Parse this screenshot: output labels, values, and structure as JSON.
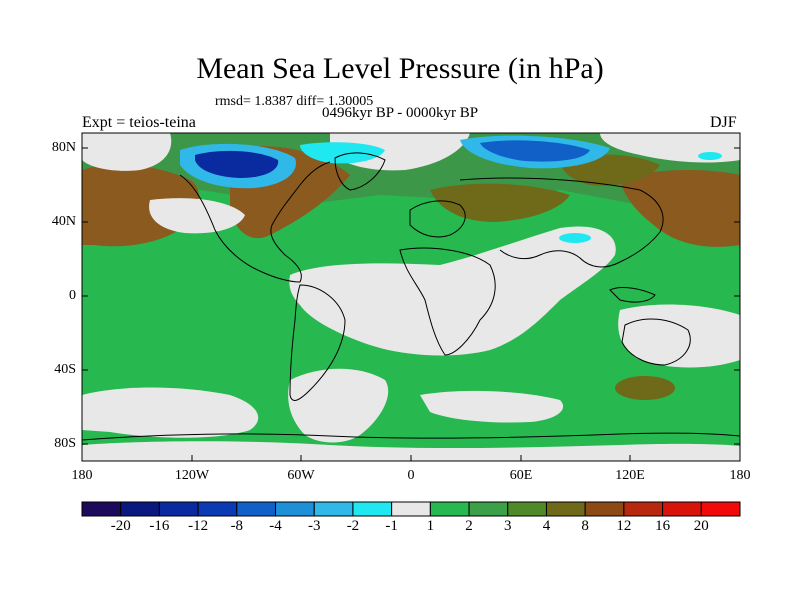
{
  "title": "Mean Sea Level Pressure (in hPa)",
  "stats_line": "rmsd= 1.8387 diff= 1.30005",
  "period": "0496kyr BP - 0000kyr BP",
  "experiment": "Expt = teios-teina",
  "season": "DJF",
  "lat_ticks": [
    "80N",
    "40N",
    "0",
    "40S",
    "80S"
  ],
  "lon_ticks": [
    "180",
    "120W",
    "60W",
    "0",
    "60E",
    "120E",
    "180"
  ],
  "colorbar": {
    "labels": [
      "-20",
      "-16",
      "-12",
      "-8",
      "-4",
      "-3",
      "-2",
      "-1",
      "1",
      "2",
      "3",
      "4",
      "8",
      "12",
      "16",
      "20"
    ],
    "colors": [
      "#1e0a5a",
      "#0a1880",
      "#0a2aa0",
      "#0a3ab4",
      "#1060c8",
      "#1e90d8",
      "#30b8e8",
      "#20e8f0",
      "#e8e8e8",
      "#28b850",
      "#3ca048",
      "#508a28",
      "#6e6a1a",
      "#8c4a14",
      "#b8280e",
      "#d8140a",
      "#f00a0a"
    ]
  },
  "map_colors": {
    "land_bg": "#28b850",
    "neutral": "#e8e8e8",
    "brown": "#8a5a1e",
    "olive": "#6e6a1a",
    "dark_green": "#3c9848",
    "blue_dark": "#0a2aa0",
    "blue_mid": "#1060c8",
    "blue_light": "#30b8e8",
    "cyan": "#20e8f0",
    "coast": "#000000"
  }
}
